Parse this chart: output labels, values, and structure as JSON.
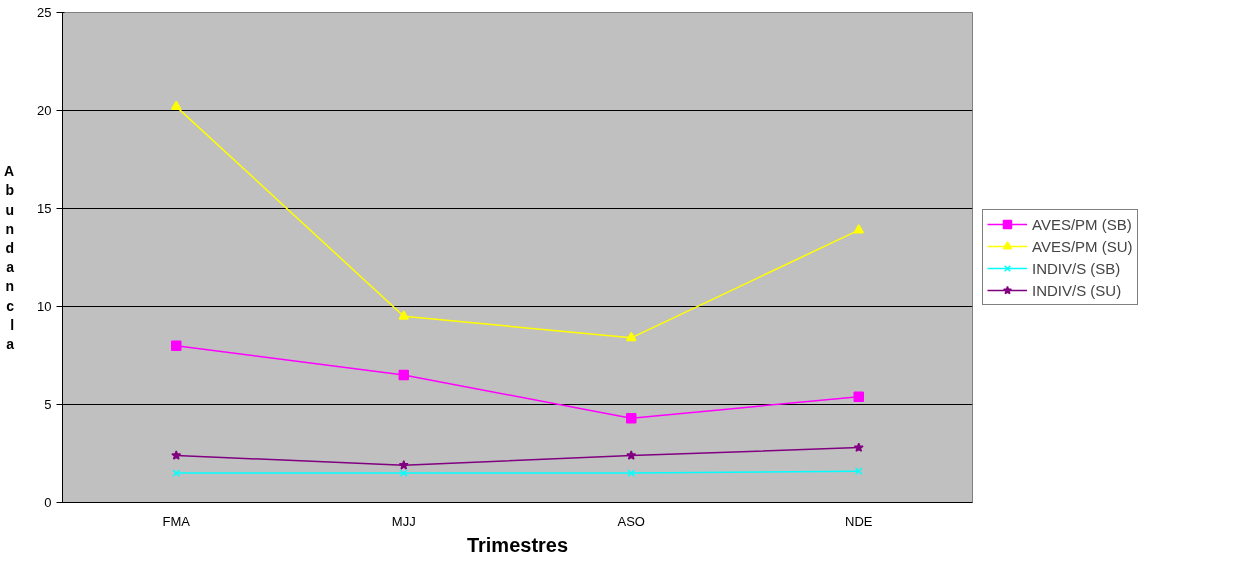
{
  "chart_data": {
    "type": "line",
    "xlabel": "Trimestres",
    "ylabel": "Abundancla",
    "categories": [
      "FMA",
      "MJJ",
      "ASO",
      "NDE"
    ],
    "series": [
      {
        "name": "AVES/PM (SB)",
        "color": "#ff00ff",
        "marker": "square",
        "values": [
          8.0,
          6.5,
          4.3,
          5.4
        ]
      },
      {
        "name": "AVES/PM (SU)",
        "color": "#ffff00",
        "marker": "triangle",
        "values": [
          20.2,
          9.5,
          8.4,
          13.9
        ]
      },
      {
        "name": "INDIV/S (SB)",
        "color": "#00ffff",
        "marker": "cross",
        "values": [
          1.5,
          1.5,
          1.5,
          1.6
        ]
      },
      {
        "name": "INDIV/S (SU)",
        "color": "#800080",
        "marker": "star",
        "values": [
          2.4,
          1.9,
          2.4,
          2.8
        ]
      }
    ],
    "ylim": [
      0,
      25
    ],
    "yticks": [
      0,
      5,
      10,
      15,
      20,
      25
    ],
    "grid": "y",
    "legend": "right"
  }
}
